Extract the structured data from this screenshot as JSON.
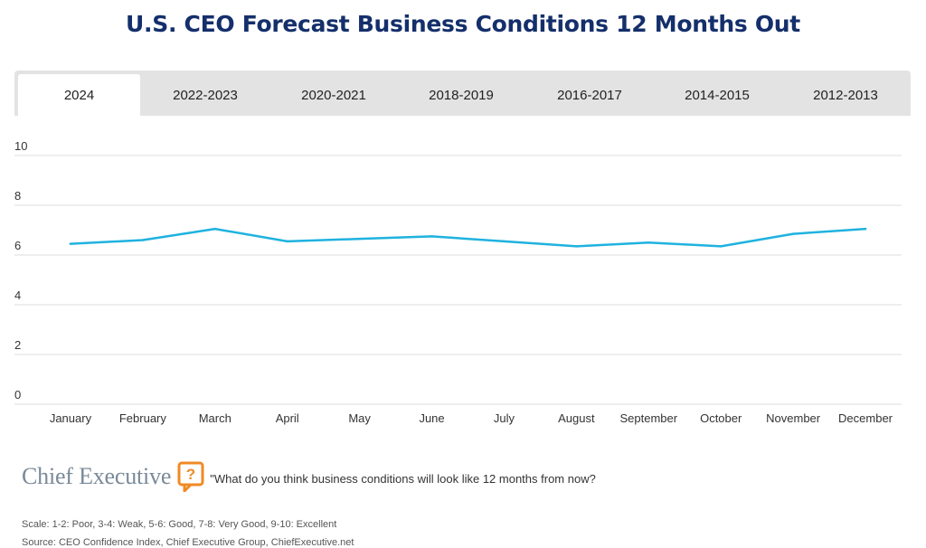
{
  "title": "U.S. CEO Forecast Business Conditions 12 Months Out",
  "tabs": [
    {
      "label": "2024",
      "active": true
    },
    {
      "label": "2022-2023",
      "active": false
    },
    {
      "label": "2020-2021",
      "active": false
    },
    {
      "label": "2018-2019",
      "active": false
    },
    {
      "label": "2016-2017",
      "active": false
    },
    {
      "label": "2014-2015",
      "active": false
    },
    {
      "label": "2012-2013",
      "active": false
    }
  ],
  "chart_data": {
    "type": "line",
    "categories": [
      "January",
      "February",
      "March",
      "April",
      "May",
      "June",
      "July",
      "August",
      "September",
      "October",
      "November",
      "December"
    ],
    "series": [
      {
        "values": [
          6.45,
          6.6,
          7.05,
          6.55,
          6.65,
          6.75,
          6.55,
          6.35,
          6.5,
          6.35,
          6.85,
          7.05
        ],
        "color": "#1fb2df"
      }
    ],
    "yticks": [
      "0",
      "2",
      "4",
      "6",
      "8",
      "10"
    ],
    "ylim": [
      0,
      10
    ],
    "grid": true,
    "legend": false
  },
  "brand": {
    "name": "Chief Executive",
    "icon": "question-bubble-icon",
    "icon_color": "#f08a24",
    "question": "\"What do you think business conditions will look like 12 months from now?"
  },
  "footnotes": {
    "scale": "Scale: 1-2: Poor, 3-4: Weak, 5-6: Good, 7-8: Very Good, 9-10: Excellent",
    "source": "Source: CEO Confidence Index, Chief Executive Group, ChiefExecutive.net"
  }
}
